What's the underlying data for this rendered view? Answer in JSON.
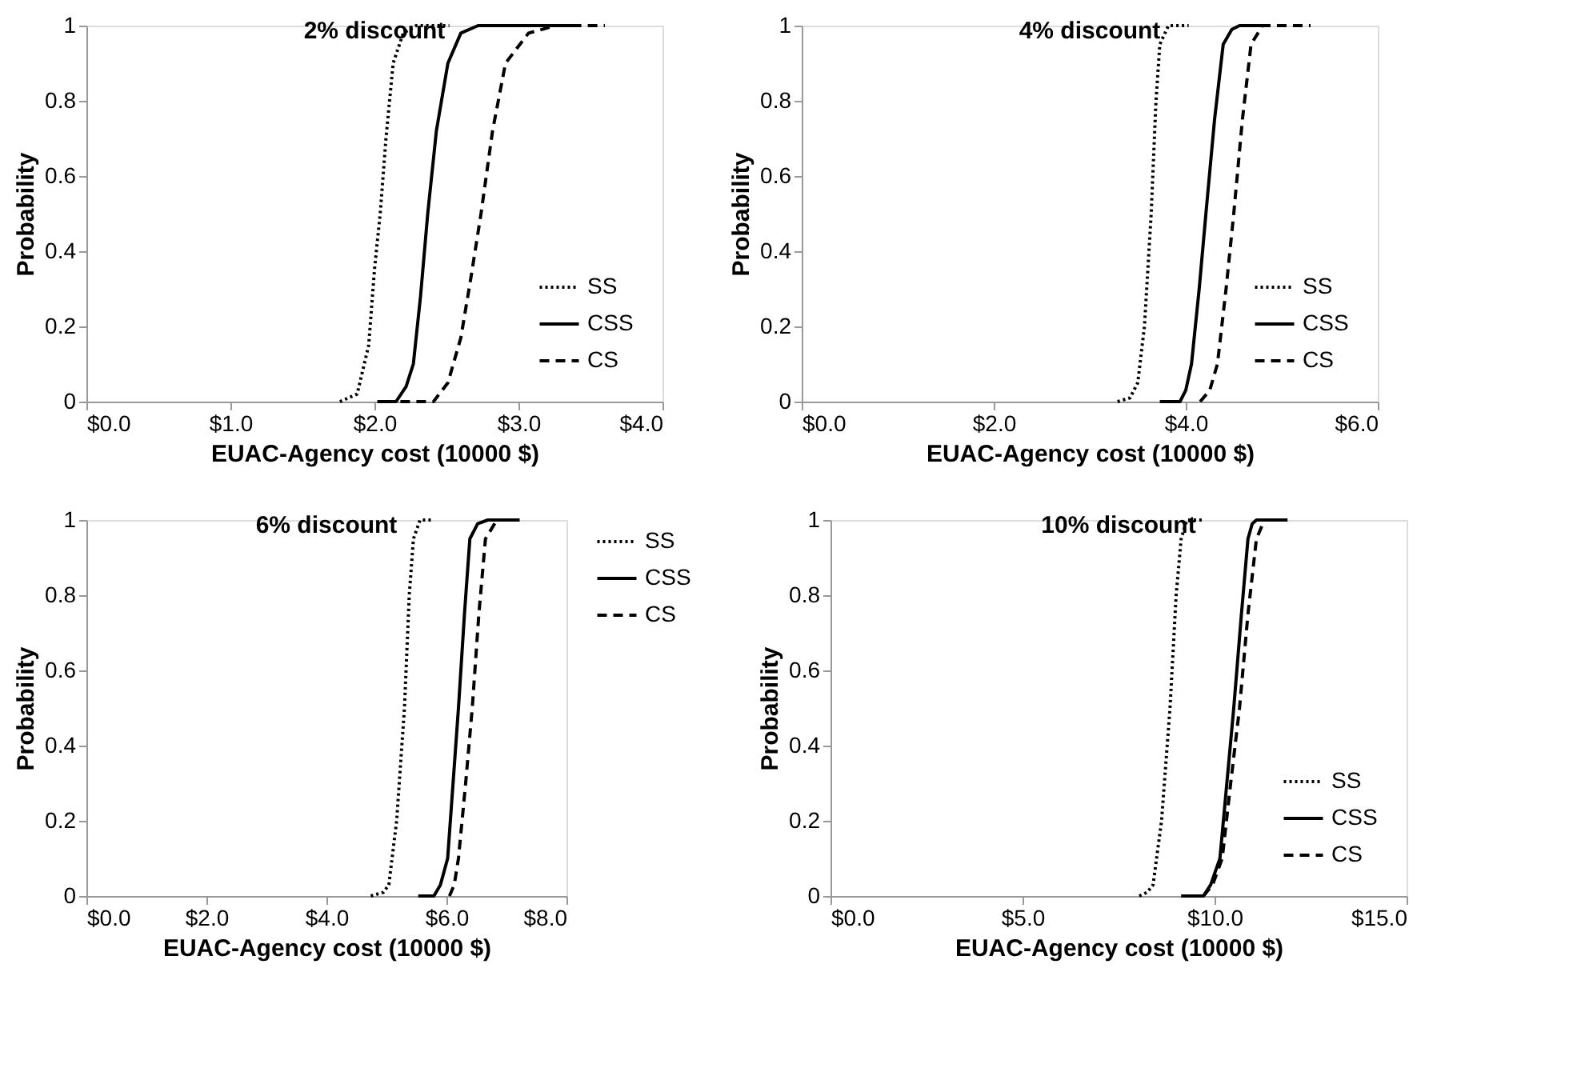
{
  "chart_data": [
    {
      "type": "line",
      "title": "2% discount",
      "xlabel": "EUAC-Agency cost (10000 $)",
      "ylabel": "Probability",
      "xlim": [
        0,
        4
      ],
      "xticks": [
        {
          "value": 0,
          "label": "$0.0"
        },
        {
          "value": 1,
          "label": "$1.0"
        },
        {
          "value": 2,
          "label": "$2.0"
        },
        {
          "value": 3,
          "label": "$3.0"
        },
        {
          "value": 4,
          "label": "$4.0"
        }
      ],
      "ylim": [
        0,
        1
      ],
      "yticks": [
        0,
        0.2,
        0.4,
        0.6,
        0.8,
        1
      ],
      "grid": false,
      "legend": "bottom right",
      "marker": "none",
      "series": [
        {
          "name": "SS",
          "color": "#000000",
          "line_style": "dotted",
          "x": [
            1.76,
            1.88,
            1.96,
            2.0,
            2.04,
            2.08,
            2.13,
            2.2,
            2.29,
            2.52
          ],
          "values": [
            0,
            0.02,
            0.15,
            0.35,
            0.5,
            0.7,
            0.9,
            0.98,
            1,
            1
          ]
        },
        {
          "name": "CSS",
          "color": "#000000",
          "line_style": "solid",
          "x": [
            2.02,
            2.15,
            2.22,
            2.27,
            2.32,
            2.37,
            2.43,
            2.51,
            2.6,
            2.72,
            3.4
          ],
          "values": [
            0,
            0,
            0.04,
            0.1,
            0.28,
            0.5,
            0.72,
            0.9,
            0.98,
            1,
            1
          ]
        },
        {
          "name": "CS",
          "color": "#000000",
          "line_style": "dashed",
          "x": [
            2.18,
            2.41,
            2.51,
            2.6,
            2.67,
            2.74,
            2.82,
            2.91,
            3.07,
            3.26,
            3.6
          ],
          "values": [
            0,
            0,
            0.05,
            0.17,
            0.33,
            0.5,
            0.72,
            0.9,
            0.98,
            1,
            1
          ]
        }
      ]
    },
    {
      "type": "line",
      "title": "4% discount",
      "xlabel": "EUAC-Agency cost (10000 $)",
      "ylabel": "Probability",
      "xlim": [
        0,
        6
      ],
      "xticks": [
        {
          "value": 0,
          "label": "$0.0"
        },
        {
          "value": 2,
          "label": "$2.0"
        },
        {
          "value": 4,
          "label": "$4.0"
        },
        {
          "value": 6,
          "label": "$6.0"
        }
      ],
      "ylim": [
        0,
        1
      ],
      "yticks": [
        0,
        0.2,
        0.4,
        0.6,
        0.8,
        1
      ],
      "grid": false,
      "legend": "bottom right",
      "marker": "none",
      "series": [
        {
          "name": "SS",
          "color": "#000000",
          "line_style": "dotted",
          "x": [
            3.29,
            3.42,
            3.5,
            3.57,
            3.64,
            3.69,
            3.73,
            3.82,
            4.03
          ],
          "values": [
            0,
            0.01,
            0.05,
            0.2,
            0.5,
            0.8,
            0.95,
            1,
            1
          ]
        },
        {
          "name": "CSS",
          "color": "#000000",
          "line_style": "solid",
          "x": [
            3.73,
            3.94,
            4.0,
            4.06,
            4.14,
            4.21,
            4.3,
            4.39,
            4.48,
            4.56,
            4.8
          ],
          "values": [
            0,
            0,
            0.03,
            0.1,
            0.3,
            0.5,
            0.75,
            0.95,
            0.99,
            1,
            1
          ]
        },
        {
          "name": "CS",
          "color": "#000000",
          "line_style": "dashed",
          "x": [
            4.15,
            4.25,
            4.33,
            4.42,
            4.5,
            4.59,
            4.68,
            4.8,
            5.3
          ],
          "values": [
            0,
            0.03,
            0.1,
            0.3,
            0.5,
            0.75,
            0.95,
            1,
            1
          ]
        }
      ]
    },
    {
      "type": "line",
      "title": "6% discount",
      "xlabel": "EUAC-Agency cost (10000 $)",
      "ylabel": "Probability",
      "xlim": [
        0,
        8
      ],
      "xticks": [
        {
          "value": 0,
          "label": "$0.0"
        },
        {
          "value": 2,
          "label": "$2.0"
        },
        {
          "value": 4,
          "label": "$4.0"
        },
        {
          "value": 6,
          "label": "$6.0"
        },
        {
          "value": 8,
          "label": "$8.0"
        }
      ],
      "ylim": [
        0,
        1
      ],
      "yticks": [
        0,
        0.2,
        0.4,
        0.6,
        0.8,
        1
      ],
      "grid": false,
      "legend": "right",
      "marker": "none",
      "series": [
        {
          "name": "SS",
          "color": "#000000",
          "line_style": "dotted",
          "x": [
            4.74,
            4.95,
            5.04,
            5.17,
            5.3,
            5.38,
            5.45,
            5.56,
            5.79
          ],
          "values": [
            0,
            0.01,
            0.03,
            0.2,
            0.5,
            0.8,
            0.95,
            1,
            1
          ]
        },
        {
          "name": "CSS",
          "color": "#000000",
          "line_style": "solid",
          "x": [
            5.53,
            5.79,
            5.9,
            6.02,
            6.11,
            6.2,
            6.3,
            6.39,
            6.52,
            6.69,
            7.22
          ],
          "values": [
            0,
            0,
            0.03,
            0.1,
            0.3,
            0.5,
            0.75,
            0.95,
            0.99,
            1,
            1
          ]
        },
        {
          "name": "CS",
          "color": "#000000",
          "line_style": "dashed",
          "x": [
            6.05,
            6.13,
            6.2,
            6.32,
            6.43,
            6.54,
            6.65,
            6.84,
            7.1
          ],
          "values": [
            0,
            0.03,
            0.1,
            0.3,
            0.5,
            0.75,
            0.95,
            1,
            1
          ]
        }
      ]
    },
    {
      "type": "line",
      "title": "10% discount",
      "xlabel": "EUAC-Agency cost (10000 $)",
      "ylabel": "Probability",
      "xlim": [
        0,
        15
      ],
      "xticks": [
        {
          "value": 0,
          "label": "$0.0"
        },
        {
          "value": 5,
          "label": "$5.0"
        },
        {
          "value": 10,
          "label": "$10.0"
        },
        {
          "value": 15,
          "label": "$15.0"
        }
      ],
      "ylim": [
        0,
        1
      ],
      "yticks": [
        0,
        0.2,
        0.4,
        0.6,
        0.8,
        1
      ],
      "grid": false,
      "legend": "bottom right",
      "marker": "none",
      "series": [
        {
          "name": "SS",
          "color": "#000000",
          "line_style": "dotted",
          "x": [
            8.04,
            8.25,
            8.4,
            8.62,
            8.84,
            9.0,
            9.13,
            9.28,
            9.7
          ],
          "values": [
            0,
            0.01,
            0.03,
            0.2,
            0.5,
            0.8,
            0.95,
            1,
            1
          ]
        },
        {
          "name": "CSS",
          "color": "#000000",
          "line_style": "solid",
          "x": [
            9.13,
            9.71,
            9.9,
            10.14,
            10.32,
            10.5,
            10.7,
            10.87,
            10.98,
            11.09,
            11.9
          ],
          "values": [
            0,
            0,
            0.03,
            0.1,
            0.3,
            0.5,
            0.75,
            0.95,
            0.99,
            1,
            1
          ]
        },
        {
          "name": "CS",
          "color": "#000000",
          "line_style": "dashed",
          "x": [
            9.71,
            9.95,
            10.2,
            10.42,
            10.65,
            10.87,
            11.09,
            11.3,
            11.5
          ],
          "values": [
            0,
            0.03,
            0.1,
            0.3,
            0.5,
            0.75,
            0.95,
            1,
            1
          ]
        }
      ]
    }
  ]
}
